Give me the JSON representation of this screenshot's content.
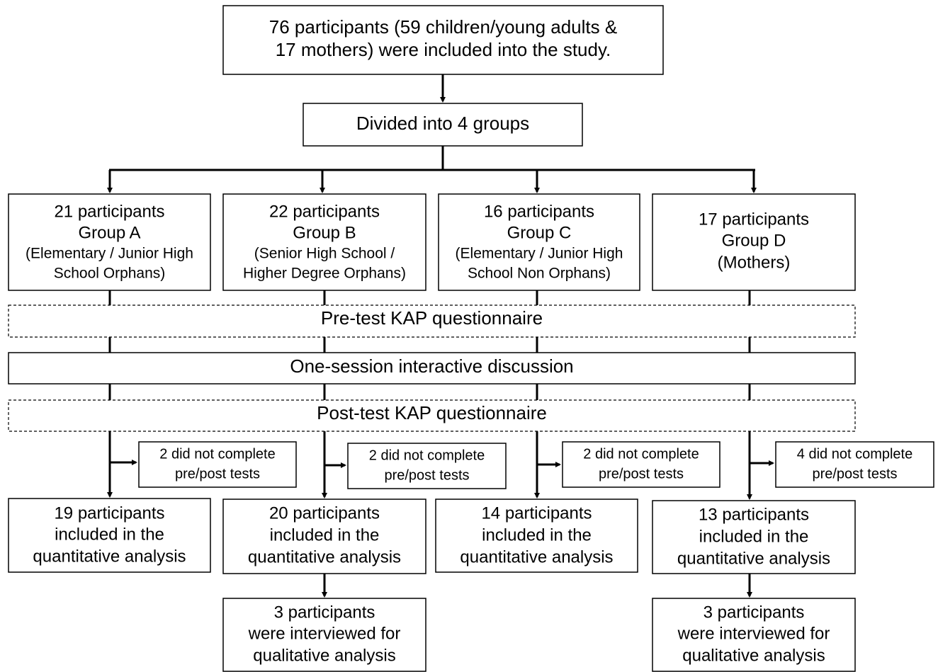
{
  "nodes": [
    {
      "lines": [
        "76 participants (59 children/young adults &",
        "17 mothers) were included into the study."
      ]
    },
    {
      "lines": [
        "Divided into 4 groups"
      ]
    },
    {
      "lines": [
        "21 participants",
        "Group A",
        "(Elementary / Junior High",
        "School Orphans)"
      ]
    },
    {
      "lines": [
        "22 participants",
        "Group B",
        "(Senior High School /",
        "Higher Degree Orphans)"
      ]
    },
    {
      "lines": [
        "16 participants",
        "Group C",
        "(Elementary / Junior High",
        "School Non Orphans)"
      ]
    },
    {
      "lines": [
        "17 participants",
        "Group D",
        "(Mothers)"
      ]
    },
    {
      "lines": [
        "Pre-test KAP questionnaire"
      ]
    },
    {
      "lines": [
        "One-session interactive discussion"
      ]
    },
    {
      "lines": [
        "Post-test KAP questionnaire"
      ]
    },
    {
      "lines": [
        "2 did not complete",
        "pre/post tests"
      ]
    },
    {
      "lines": [
        "2 did not complete",
        "pre/post tests"
      ]
    },
    {
      "lines": [
        "2 did not complete",
        "pre/post tests"
      ]
    },
    {
      "lines": [
        "4 did not complete",
        "pre/post tests"
      ]
    },
    {
      "lines": [
        "19 participants",
        "included in the",
        "quantitative analysis"
      ]
    },
    {
      "lines": [
        "20 participants",
        "included in the",
        "quantitative analysis"
      ]
    },
    {
      "lines": [
        "14 participants",
        "included in the",
        "quantitative analysis"
      ]
    },
    {
      "lines": [
        "13 participants",
        "included in the",
        "quantitative analysis"
      ]
    },
    {
      "lines": [
        "3 participants",
        "were interviewed for",
        "qualitative analysis"
      ]
    },
    {
      "lines": [
        "3 participants",
        "were interviewed for",
        "qualitative analysis"
      ]
    }
  ]
}
